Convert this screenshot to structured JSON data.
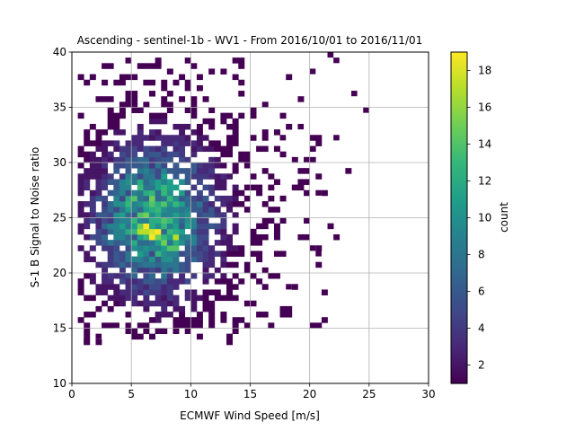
{
  "chart_data": {
    "type": "heatmap",
    "title": "Ascending - sentinel-1b - WV1 - From 2016/10/01 to 2016/11/01",
    "xlabel": "ECMWF Wind Speed [m/s]",
    "ylabel": "S-1 B Signal to Noise ratio",
    "xlim": [
      0,
      30
    ],
    "ylim": [
      10,
      40
    ],
    "xticks": [
      "0",
      "5",
      "10",
      "15",
      "20",
      "25",
      "30"
    ],
    "yticks": [
      "10",
      "15",
      "20",
      "25",
      "30",
      "35",
      "40"
    ],
    "grid": true,
    "colormap": "viridis",
    "colorbar": {
      "label": "count",
      "range": [
        1,
        19
      ],
      "ticks": [
        "2",
        "4",
        "6",
        "8",
        "10",
        "12",
        "14",
        "16",
        "18"
      ]
    },
    "bin_size": {
      "x": 0.5,
      "y": 0.5
    },
    "density_model": {
      "peak_count": 19,
      "center": {
        "x": 7.0,
        "y": 25.0
      },
      "spread": {
        "x": 3.5,
        "y": 4.5
      },
      "core_peaks": [
        {
          "x": 6.5,
          "y": 24.0,
          "count": 19
        },
        {
          "x": 8.2,
          "y": 23.0,
          "count": 16
        },
        {
          "x": 5.5,
          "y": 27.0,
          "count": 12
        }
      ],
      "extent": {
        "x": [
          0.5,
          24.5
        ],
        "y": [
          13.5,
          39.5
        ]
      }
    }
  }
}
